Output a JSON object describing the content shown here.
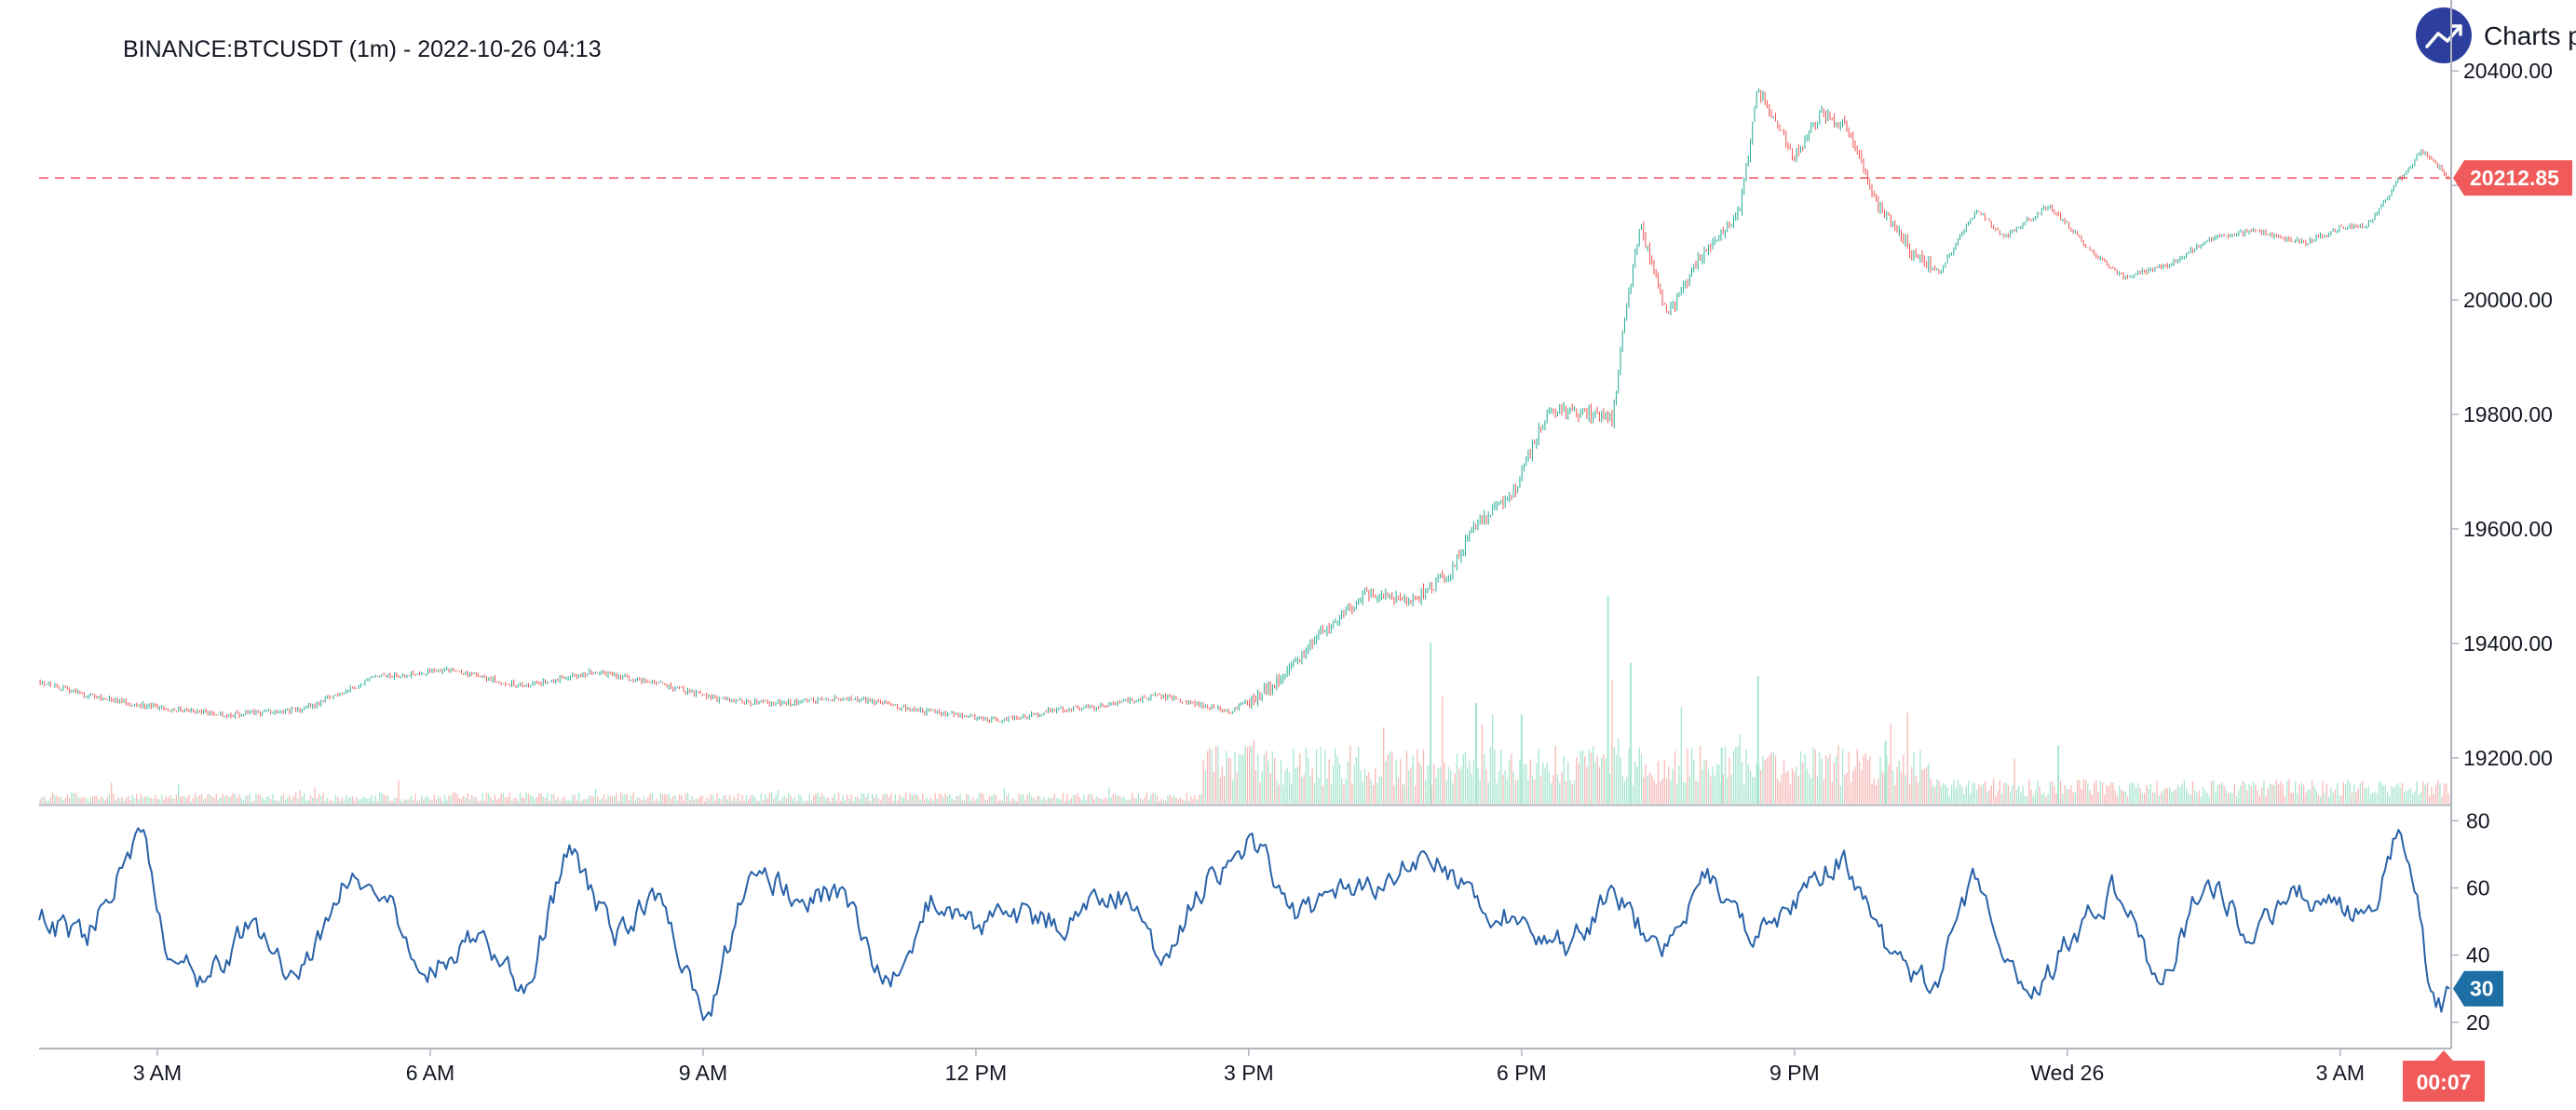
{
  "header": {
    "title": "BINANCE:BTCUSDT (1m) - 2022-10-26 04:13",
    "brand_label": "Charts p"
  },
  "colors": {
    "up": "#26a69a",
    "up_candle": "#22ab94",
    "down": "#ef5350",
    "volume_up": "#a8e6cf",
    "volume_down": "#f7b9b7",
    "indicator": "#2962a8",
    "price_line": "#f23645",
    "last_price_badge": "#f05a5a",
    "indicator_badge": "#1c6ea4",
    "brand": "#2d3e9e",
    "grid_axis": "#b2b5be"
  },
  "chart_data": {
    "type": "candlestick",
    "symbol": "BINANCE:BTCUSDT",
    "interval": "1m",
    "price_axis": {
      "range": [
        19125,
        20475
      ],
      "tick_labels": [
        "20400.00",
        "20200.00",
        "20000.00",
        "19800.00",
        "19600.00",
        "19400.00",
        "19200.00"
      ],
      "tick_values": [
        20400,
        20200,
        20000,
        19800,
        19600,
        19400,
        19200
      ]
    },
    "last_price": {
      "value": 20212.85,
      "label": "20212.85"
    },
    "countdown_label": "00:07",
    "time_axis": {
      "tick_labels": [
        "3 AM",
        "6 AM",
        "9 AM",
        "12 PM",
        "3 PM",
        "6 PM",
        "9 PM",
        "Wed 26",
        "3 AM"
      ],
      "tick_positions_hours": [
        3,
        6,
        9,
        12,
        15,
        18,
        21,
        24,
        27
      ],
      "start_hour": 1.7,
      "end_hour": 28.2
    },
    "price_path": {
      "hours": [
        1.7,
        2.2,
        2.9,
        3.8,
        4.6,
        5.4,
        6.2,
        7.0,
        7.8,
        8.5,
        9.2,
        9.8,
        10.6,
        11.5,
        12.3,
        12.9,
        13.4,
        14.0,
        14.8,
        15.3,
        15.8,
        16.3,
        16.8,
        17.2,
        17.5,
        17.9,
        18.3,
        18.8,
        19.0,
        19.15,
        19.3,
        19.6,
        19.9,
        20.1,
        20.4,
        20.6,
        21.0,
        21.3,
        21.6,
        21.9,
        22.3,
        22.6,
        23.0,
        23.3,
        23.8,
        24.3,
        24.6,
        25.1,
        25.6,
        26.1,
        26.6,
        27.0,
        27.3,
        27.6,
        27.9,
        28.2
      ],
      "prices": [
        19335,
        19310,
        19290,
        19275,
        19285,
        19340,
        19355,
        19325,
        19350,
        19330,
        19300,
        19295,
        19305,
        19280,
        19265,
        19285,
        19290,
        19310,
        19280,
        19330,
        19420,
        19490,
        19475,
        19520,
        19610,
        19660,
        19810,
        19800,
        19790,
        19990,
        20130,
        19970,
        20060,
        20100,
        20160,
        20370,
        20250,
        20330,
        20300,
        20170,
        20080,
        20050,
        20160,
        20110,
        20165,
        20080,
        20040,
        20060,
        20110,
        20120,
        20100,
        20125,
        20130,
        20200,
        20260,
        20212.85
      ]
    },
    "volume_series": {
      "description": "Volume histogram below price; larger bars during 15:00-22:00",
      "scale_max": 100,
      "spikes": [
        {
          "hour": 17.0,
          "value": 72
        },
        {
          "hour": 17.5,
          "value": 45
        },
        {
          "hour": 18.0,
          "value": 40
        },
        {
          "hour": 18.95,
          "value": 93
        },
        {
          "hour": 19.2,
          "value": 63
        },
        {
          "hour": 20.2,
          "value": 25
        },
        {
          "hour": 20.6,
          "value": 57
        },
        {
          "hour": 22.0,
          "value": 28
        },
        {
          "hour": 23.9,
          "value": 26
        }
      ]
    },
    "indicator": {
      "name": "oscillator",
      "range": [
        13,
        84
      ],
      "tick_labels": [
        "80",
        "60",
        "40",
        "20"
      ],
      "tick_values": [
        80,
        60,
        40,
        20
      ],
      "last_value": 30,
      "last_label": "30",
      "hours": [
        1.7,
        2.2,
        2.5,
        2.8,
        3.1,
        3.5,
        4.0,
        4.5,
        5.0,
        5.5,
        6.0,
        6.5,
        7.0,
        7.5,
        8.0,
        8.5,
        9.0,
        9.5,
        10.0,
        10.5,
        11.0,
        11.5,
        12.0,
        12.5,
        13.0,
        13.5,
        14.0,
        14.5,
        15.0,
        15.5,
        16.0,
        16.5,
        17.0,
        17.5,
        18.0,
        18.5,
        19.0,
        19.5,
        20.0,
        20.5,
        21.0,
        21.5,
        22.0,
        22.5,
        23.0,
        23.5,
        24.0,
        24.5,
        25.0,
        25.5,
        26.0,
        26.5,
        27.0,
        27.3,
        27.6,
        27.8,
        28.0,
        28.2
      ],
      "values": [
        50,
        45,
        62,
        78,
        40,
        32,
        50,
        30,
        62,
        55,
        35,
        48,
        28,
        73,
        45,
        60,
        17,
        70,
        55,
        60,
        30,
        58,
        48,
        52,
        50,
        60,
        40,
        62,
        75,
        52,
        58,
        62,
        72,
        55,
        50,
        42,
        60,
        38,
        65,
        45,
        55,
        70,
        40,
        30,
        65,
        25,
        45,
        60,
        30,
        65,
        45,
        58,
        52,
        50,
        80,
        60,
        20,
        30
      ]
    }
  }
}
